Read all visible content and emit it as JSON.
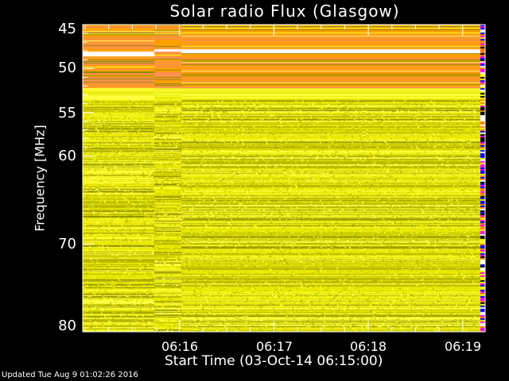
{
  "chart_data": {
    "type": "heatmap",
    "title": "Solar radio Flux (Glasgow)",
    "xlabel": "Start Time (03-Oct-14 06:15:00)",
    "ylabel": "Frequency [MHz]",
    "x_ticks": [
      "06:16",
      "06:17",
      "06:18",
      "06:19"
    ],
    "x_range": [
      "06:15:00",
      "06:19:14"
    ],
    "y_ticks": [
      45,
      50,
      55,
      60,
      70,
      80
    ],
    "y_range": [
      45,
      80
    ],
    "y_direction": "increasing-downward",
    "colormap": [
      "#8a8a00",
      "#b8b800",
      "#e8e800",
      "#ffff40",
      "#ffa000",
      "#ff9050",
      "#ffffff"
    ]
  },
  "footer": {
    "updated": "Updated Tue Aug  9 01:02:26 2016"
  }
}
